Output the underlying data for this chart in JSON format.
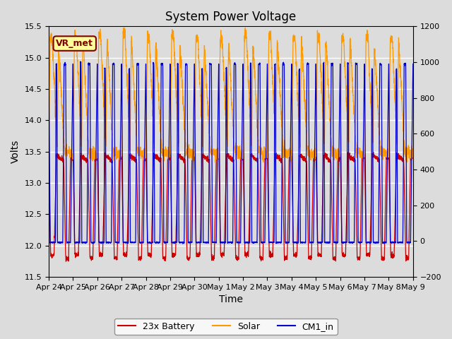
{
  "title": "System Power Voltage",
  "xlabel": "Time",
  "ylabel": "Volts",
  "ylim_left": [
    11.5,
    15.5
  ],
  "ylim_right": [
    -200,
    1200
  ],
  "background_color": "#dcdcdc",
  "legend_labels": [
    "23x Battery",
    "Solar",
    "CM1_in"
  ],
  "legend_colors": [
    "#cc0000",
    "#ff9900",
    "#0000cc"
  ],
  "annotation_text": "VR_met",
  "annotation_color": "#800000",
  "annotation_bg": "#ffff99",
  "x_tick_labels": [
    "Apr 24",
    "Apr 25",
    "Apr 26",
    "Apr 27",
    "Apr 28",
    "Apr 29",
    "Apr 30",
    "May 1",
    "May 2",
    "May 3",
    "May 4",
    "May 5",
    "May 6",
    "May 7",
    "May 8",
    "May 9"
  ],
  "right_ticks": [
    -200,
    0,
    200,
    400,
    600,
    800,
    1000,
    1200
  ],
  "left_ticks": [
    11.5,
    12.0,
    12.5,
    13.0,
    13.5,
    14.0,
    14.5,
    15.0,
    15.5
  ],
  "n_days": 15,
  "pts_per_day": 200
}
